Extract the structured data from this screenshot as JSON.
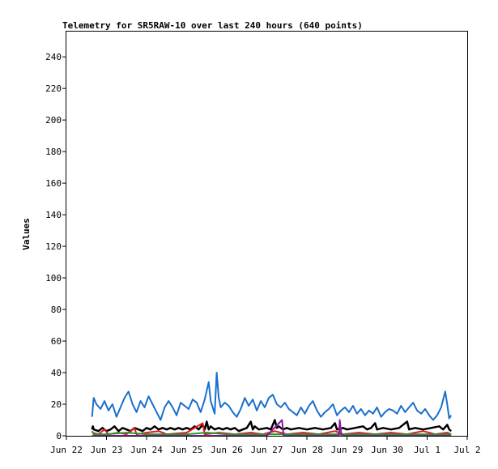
{
  "chart_data": {
    "type": "line",
    "title": "Telemetry for SR5RAW-10 over last 240 hours (640 points)",
    "xlabel": "",
    "ylabel": "Values",
    "x_ticks": [
      "Jun 22",
      "Jun 23",
      "Jun 24",
      "Jun 25",
      "Jun 26",
      "Jun 27",
      "Jun 28",
      "Jun 29",
      "Jun 30",
      "Jul 1",
      "Jul 2"
    ],
    "xlim": [
      "Jun 22",
      "Jul 2"
    ],
    "y_ticks": [
      0,
      20,
      40,
      60,
      80,
      100,
      120,
      140,
      160,
      180,
      200,
      220,
      240
    ],
    "ylim": [
      0,
      256
    ],
    "grid": false,
    "series": [
      {
        "color": "#1a6fcc",
        "points": [
          [
            0.64,
            12
          ],
          [
            0.68,
            24
          ],
          [
            0.75,
            20
          ],
          [
            0.85,
            17
          ],
          [
            0.95,
            22
          ],
          [
            1.05,
            16
          ],
          [
            1.15,
            20
          ],
          [
            1.25,
            12
          ],
          [
            1.35,
            18
          ],
          [
            1.45,
            24
          ],
          [
            1.55,
            28
          ],
          [
            1.65,
            20
          ],
          [
            1.75,
            15
          ],
          [
            1.85,
            22
          ],
          [
            1.95,
            18
          ],
          [
            2.05,
            25
          ],
          [
            2.15,
            20
          ],
          [
            2.25,
            15
          ],
          [
            2.35,
            10
          ],
          [
            2.45,
            18
          ],
          [
            2.55,
            22
          ],
          [
            2.65,
            18
          ],
          [
            2.75,
            13
          ],
          [
            2.85,
            21
          ],
          [
            2.95,
            19
          ],
          [
            3.05,
            17
          ],
          [
            3.15,
            23
          ],
          [
            3.25,
            21
          ],
          [
            3.35,
            15
          ],
          [
            3.45,
            23
          ],
          [
            3.55,
            34
          ],
          [
            3.6,
            22
          ],
          [
            3.7,
            14
          ],
          [
            3.75,
            40
          ],
          [
            3.8,
            24
          ],
          [
            3.85,
            18
          ],
          [
            3.95,
            21
          ],
          [
            4.05,
            19
          ],
          [
            4.15,
            15
          ],
          [
            4.25,
            12
          ],
          [
            4.35,
            17
          ],
          [
            4.45,
            24
          ],
          [
            4.55,
            19
          ],
          [
            4.65,
            23
          ],
          [
            4.75,
            16
          ],
          [
            4.85,
            22
          ],
          [
            4.95,
            18
          ],
          [
            5.05,
            24
          ],
          [
            5.15,
            26
          ],
          [
            5.25,
            20
          ],
          [
            5.35,
            18
          ],
          [
            5.45,
            21
          ],
          [
            5.55,
            17
          ],
          [
            5.65,
            15
          ],
          [
            5.75,
            13
          ],
          [
            5.85,
            18
          ],
          [
            5.95,
            14
          ],
          [
            6.05,
            19
          ],
          [
            6.15,
            22
          ],
          [
            6.25,
            16
          ],
          [
            6.35,
            12
          ],
          [
            6.45,
            15
          ],
          [
            6.55,
            17
          ],
          [
            6.65,
            20
          ],
          [
            6.75,
            13
          ],
          [
            6.85,
            16
          ],
          [
            6.95,
            18
          ],
          [
            7.05,
            15
          ],
          [
            7.15,
            19
          ],
          [
            7.25,
            14
          ],
          [
            7.35,
            17
          ],
          [
            7.45,
            13
          ],
          [
            7.55,
            16
          ],
          [
            7.65,
            14
          ],
          [
            7.75,
            18
          ],
          [
            7.85,
            12
          ],
          [
            7.95,
            15
          ],
          [
            8.05,
            17
          ],
          [
            8.15,
            16
          ],
          [
            8.25,
            14
          ],
          [
            8.35,
            19
          ],
          [
            8.45,
            15
          ],
          [
            8.55,
            18
          ],
          [
            8.65,
            21
          ],
          [
            8.75,
            16
          ],
          [
            8.85,
            14
          ],
          [
            8.95,
            17
          ],
          [
            9.05,
            13
          ],
          [
            9.15,
            10
          ],
          [
            9.25,
            13
          ],
          [
            9.35,
            18
          ],
          [
            9.45,
            28
          ],
          [
            9.5,
            20
          ],
          [
            9.55,
            11
          ],
          [
            9.6,
            13
          ]
        ]
      },
      {
        "color": "#000000",
        "points": [
          [
            0.64,
            4
          ],
          [
            0.66,
            6
          ],
          [
            0.68,
            4
          ],
          [
            0.8,
            3
          ],
          [
            0.9,
            5
          ],
          [
            1.0,
            3
          ],
          [
            1.1,
            4
          ],
          [
            1.2,
            6
          ],
          [
            1.3,
            3
          ],
          [
            1.4,
            5
          ],
          [
            1.5,
            4
          ],
          [
            1.6,
            3
          ],
          [
            1.7,
            5
          ],
          [
            1.8,
            4
          ],
          [
            1.9,
            3
          ],
          [
            2.0,
            5
          ],
          [
            2.1,
            4
          ],
          [
            2.2,
            6
          ],
          [
            2.3,
            4
          ],
          [
            2.4,
            5
          ],
          [
            2.5,
            4
          ],
          [
            2.6,
            5
          ],
          [
            2.7,
            4
          ],
          [
            2.8,
            5
          ],
          [
            2.9,
            4
          ],
          [
            3.0,
            5
          ],
          [
            3.1,
            4
          ],
          [
            3.2,
            6
          ],
          [
            3.3,
            4
          ],
          [
            3.4,
            7
          ],
          [
            3.45,
            4
          ],
          [
            3.5,
            9
          ],
          [
            3.55,
            4
          ],
          [
            3.6,
            6
          ],
          [
            3.7,
            4
          ],
          [
            3.8,
            5
          ],
          [
            3.9,
            4
          ],
          [
            4.0,
            5
          ],
          [
            4.1,
            4
          ],
          [
            4.2,
            5
          ],
          [
            4.3,
            3
          ],
          [
            4.4,
            4
          ],
          [
            4.5,
            5
          ],
          [
            4.6,
            9
          ],
          [
            4.65,
            4
          ],
          [
            4.7,
            6
          ],
          [
            4.8,
            4
          ],
          [
            5.0,
            5
          ],
          [
            5.1,
            4
          ],
          [
            5.2,
            10
          ],
          [
            5.25,
            5
          ],
          [
            5.3,
            6
          ],
          [
            5.4,
            4
          ],
          [
            5.5,
            5
          ],
          [
            5.6,
            4
          ],
          [
            5.8,
            5
          ],
          [
            6.0,
            4
          ],
          [
            6.2,
            5
          ],
          [
            6.4,
            4
          ],
          [
            6.6,
            5
          ],
          [
            6.7,
            8
          ],
          [
            6.75,
            4
          ],
          [
            6.9,
            5
          ],
          [
            7.0,
            4
          ],
          [
            7.2,
            5
          ],
          [
            7.4,
            6
          ],
          [
            7.5,
            4
          ],
          [
            7.6,
            5
          ],
          [
            7.7,
            8
          ],
          [
            7.75,
            4
          ],
          [
            7.9,
            5
          ],
          [
            8.1,
            4
          ],
          [
            8.3,
            5
          ],
          [
            8.5,
            9
          ],
          [
            8.55,
            4
          ],
          [
            8.7,
            5
          ],
          [
            8.9,
            4
          ],
          [
            9.1,
            5
          ],
          [
            9.3,
            6
          ],
          [
            9.4,
            4
          ],
          [
            9.5,
            7
          ],
          [
            9.55,
            4
          ],
          [
            9.6,
            3
          ]
        ]
      },
      {
        "color": "#e8141c",
        "points": [
          [
            0.64,
            2
          ],
          [
            0.8,
            1
          ],
          [
            0.95,
            4
          ],
          [
            1.05,
            1
          ],
          [
            1.3,
            2
          ],
          [
            1.5,
            1
          ],
          [
            1.7,
            5
          ],
          [
            1.75,
            1
          ],
          [
            2.0,
            2
          ],
          [
            2.3,
            3
          ],
          [
            2.5,
            1
          ],
          [
            3.0,
            2
          ],
          [
            3.4,
            8
          ],
          [
            3.45,
            1
          ],
          [
            3.8,
            2
          ],
          [
            4.2,
            1
          ],
          [
            4.6,
            2
          ],
          [
            4.9,
            1
          ],
          [
            5.2,
            3
          ],
          [
            5.5,
            1
          ],
          [
            5.9,
            2
          ],
          [
            6.3,
            1
          ],
          [
            6.7,
            3
          ],
          [
            6.9,
            1
          ],
          [
            7.3,
            2
          ],
          [
            7.7,
            1
          ],
          [
            8.1,
            2
          ],
          [
            8.5,
            1
          ],
          [
            8.9,
            3
          ],
          [
            9.2,
            1
          ],
          [
            9.5,
            2
          ],
          [
            9.6,
            1
          ]
        ]
      },
      {
        "color": "#1a9c2a",
        "points": [
          [
            0.64,
            3
          ],
          [
            0.68,
            1
          ],
          [
            1.0,
            1
          ],
          [
            1.5,
            2
          ],
          [
            2.0,
            1
          ],
          [
            3.0,
            1
          ],
          [
            3.5,
            2
          ],
          [
            4.0,
            1
          ],
          [
            5.0,
            1
          ],
          [
            6.0,
            1
          ],
          [
            7.0,
            1
          ],
          [
            8.0,
            1
          ],
          [
            9.0,
            1
          ],
          [
            9.6,
            1
          ]
        ]
      },
      {
        "color": "#8b1a9c",
        "points": [
          [
            0.64,
            0
          ],
          [
            1.0,
            0
          ],
          [
            2.0,
            0
          ],
          [
            3.0,
            0
          ],
          [
            4.0,
            0
          ],
          [
            5.0,
            0
          ],
          [
            5.38,
            10
          ],
          [
            5.42,
            0
          ],
          [
            6.0,
            0
          ],
          [
            6.8,
            0
          ],
          [
            6.82,
            10
          ],
          [
            6.86,
            0
          ],
          [
            7.0,
            0
          ],
          [
            8.0,
            0
          ],
          [
            9.0,
            0
          ],
          [
            9.6,
            0
          ]
        ]
      }
    ]
  }
}
